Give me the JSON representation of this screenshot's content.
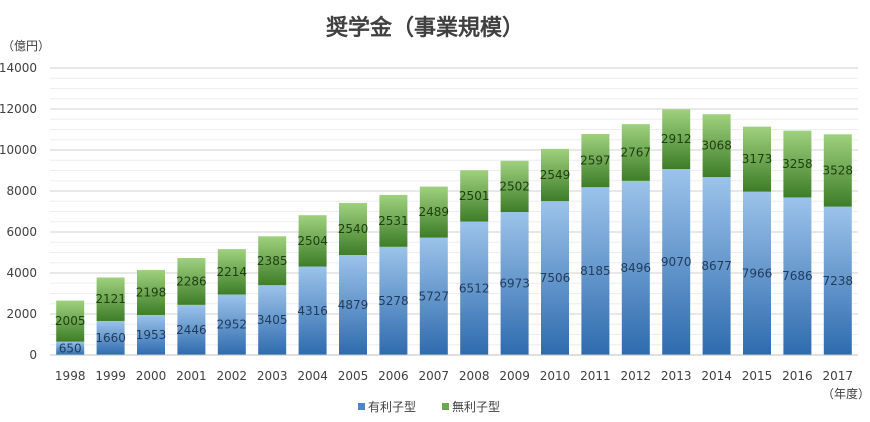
{
  "chart_data": {
    "type": "bar",
    "stacked": true,
    "title": "奨学金（事業規模）",
    "ylabel": "（億円）",
    "xlabel": "（年度）",
    "ylim": [
      0,
      14000
    ],
    "yticks": [
      0,
      2000,
      4000,
      6000,
      8000,
      10000,
      12000,
      14000
    ],
    "grid": true,
    "legend_position": "bottom",
    "categories": [
      "1998",
      "1999",
      "2000",
      "2001",
      "2002",
      "2003",
      "2004",
      "2005",
      "2006",
      "2007",
      "2008",
      "2009",
      "2010",
      "2011",
      "2012",
      "2013",
      "2014",
      "2015",
      "2016",
      "2017"
    ],
    "series": [
      {
        "name": "有利子型",
        "color": "#4a86c8",
        "values": [
          650,
          1660,
          1953,
          2446,
          2952,
          3405,
          4316,
          4879,
          5278,
          5727,
          6512,
          6973,
          7506,
          8185,
          8496,
          9070,
          8677,
          7966,
          7686,
          7238
        ]
      },
      {
        "name": "無利子型",
        "color": "#6aa84f",
        "values": [
          2005,
          2121,
          2198,
          2286,
          2214,
          2385,
          2504,
          2540,
          2531,
          2489,
          2501,
          2502,
          2549,
          2597,
          2767,
          2912,
          3068,
          3173,
          3258,
          3528
        ]
      }
    ]
  }
}
